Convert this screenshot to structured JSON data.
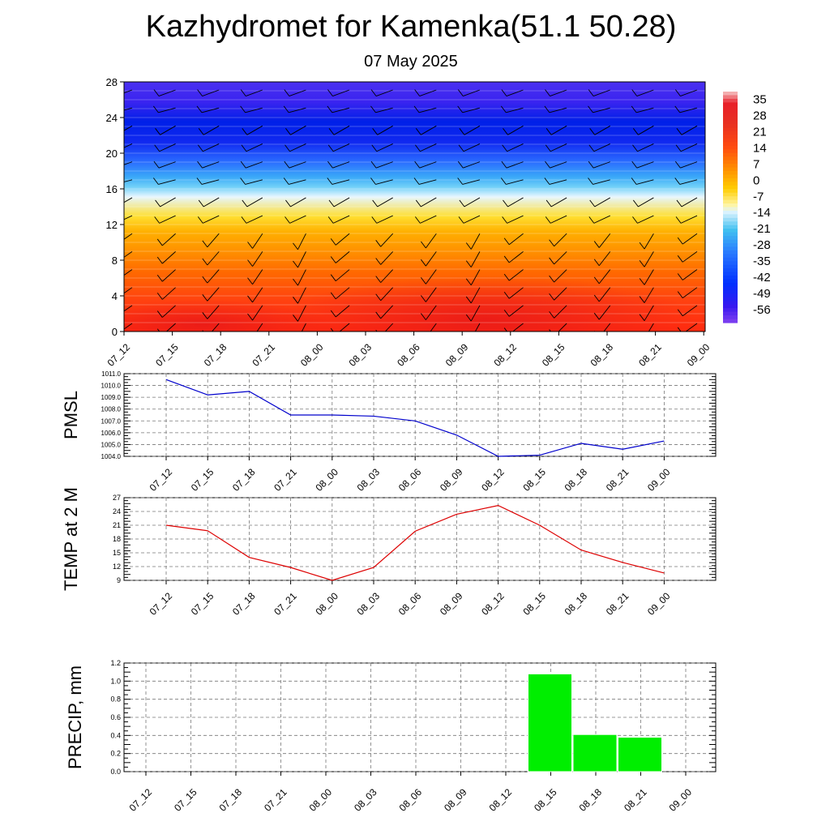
{
  "header": {
    "title": "Kazhydromet for Kamenka(51.1 50.28)",
    "date": "07 May 2025"
  },
  "colors": {
    "pmsl_line": "#0000cc",
    "temp_line": "#dd0000",
    "precip_bar": "#00ee00"
  },
  "chart_data": [
    {
      "type": "heatmap",
      "title": "",
      "xlabel": "",
      "ylabel": "",
      "x": [
        "07_12",
        "07_15",
        "07_18",
        "07_21",
        "08_00",
        "08_03",
        "08_06",
        "08_09",
        "08_12",
        "08_15",
        "08_18",
        "08_21",
        "09_00"
      ],
      "yticks": [
        0,
        4,
        8,
        12,
        16,
        20,
        24,
        28
      ],
      "ylim": [
        0,
        28
      ],
      "colorbar": {
        "labels": [
          35,
          28,
          21,
          14,
          7,
          0,
          -7,
          -14,
          -21,
          -28,
          -35,
          -42,
          -49,
          -56
        ],
        "range": [
          -62,
          38
        ],
        "stops": [
          {
            "v": 38,
            "c": "#f5c8c8"
          },
          {
            "v": 33,
            "c": "#e8202a"
          },
          {
            "v": 24,
            "c": "#e83020"
          },
          {
            "v": 14,
            "c": "#ff4a10"
          },
          {
            "v": 5,
            "c": "#ff8c00"
          },
          {
            "v": -4,
            "c": "#ffcc00"
          },
          {
            "v": -11,
            "c": "#fff5a0"
          },
          {
            "v": -14,
            "c": "#e0f4ff"
          },
          {
            "v": -22,
            "c": "#40c0f0"
          },
          {
            "v": -32,
            "c": "#2878ff"
          },
          {
            "v": -45,
            "c": "#0030ff"
          },
          {
            "v": -55,
            "c": "#3818f0"
          },
          {
            "v": -62,
            "c": "#8040f0"
          }
        ]
      },
      "profile_description": "temperature by height: warm (red/orange) near 0, yellow near 12, light blue to purple from 13 to 28"
    },
    {
      "type": "line",
      "ylabel": "PMSL",
      "x": [
        "07_12",
        "07_15",
        "07_18",
        "07_21",
        "08_00",
        "08_03",
        "08_06",
        "08_09",
        "08_12",
        "08_15",
        "08_18",
        "08_21",
        "09_00"
      ],
      "series": [
        {
          "values": [
            1010.5,
            1009.2,
            1009.5,
            1007.5,
            1007.5,
            1007.4,
            1007.0,
            1005.8,
            1004.0,
            1004.1,
            1005.1,
            1004.6,
            1005.3
          ]
        }
      ],
      "yticks": [
        "1004.0",
        "1005.0",
        "1006.0",
        "1007.0",
        "1008.0",
        "1009.0",
        "1010.0",
        "1011.0"
      ],
      "ylim": [
        1004.0,
        1011.0
      ]
    },
    {
      "type": "line",
      "ylabel": "TEMP at 2 M",
      "x": [
        "07_12",
        "07_15",
        "07_18",
        "07_21",
        "08_00",
        "08_03",
        "08_06",
        "08_09",
        "08_12",
        "08_15",
        "08_18",
        "08_21",
        "09_00"
      ],
      "series": [
        {
          "values": [
            21.0,
            19.8,
            14.0,
            11.8,
            9.0,
            11.8,
            19.7,
            23.4,
            25.3,
            21.0,
            15.6,
            12.9,
            10.6
          ]
        }
      ],
      "yticks": [
        "9",
        "12",
        "15",
        "18",
        "21",
        "24",
        "27"
      ],
      "ylim": [
        9,
        27
      ]
    },
    {
      "type": "bar",
      "ylabel": "PRECIP, mm",
      "categories": [
        "07_12",
        "07_15",
        "07_18",
        "07_21",
        "08_00",
        "08_03",
        "08_06",
        "08_09",
        "08_12",
        "08_15",
        "08_18",
        "08_21",
        "09_00"
      ],
      "values": [
        0,
        0,
        0,
        0,
        0,
        0,
        0,
        0,
        0,
        1.08,
        0.41,
        0.38,
        0
      ],
      "yticks": [
        "0.0",
        "0.2",
        "0.4",
        "0.6",
        "0.8",
        "1.0",
        "1.2"
      ],
      "ylim": [
        0,
        1.2
      ]
    }
  ]
}
